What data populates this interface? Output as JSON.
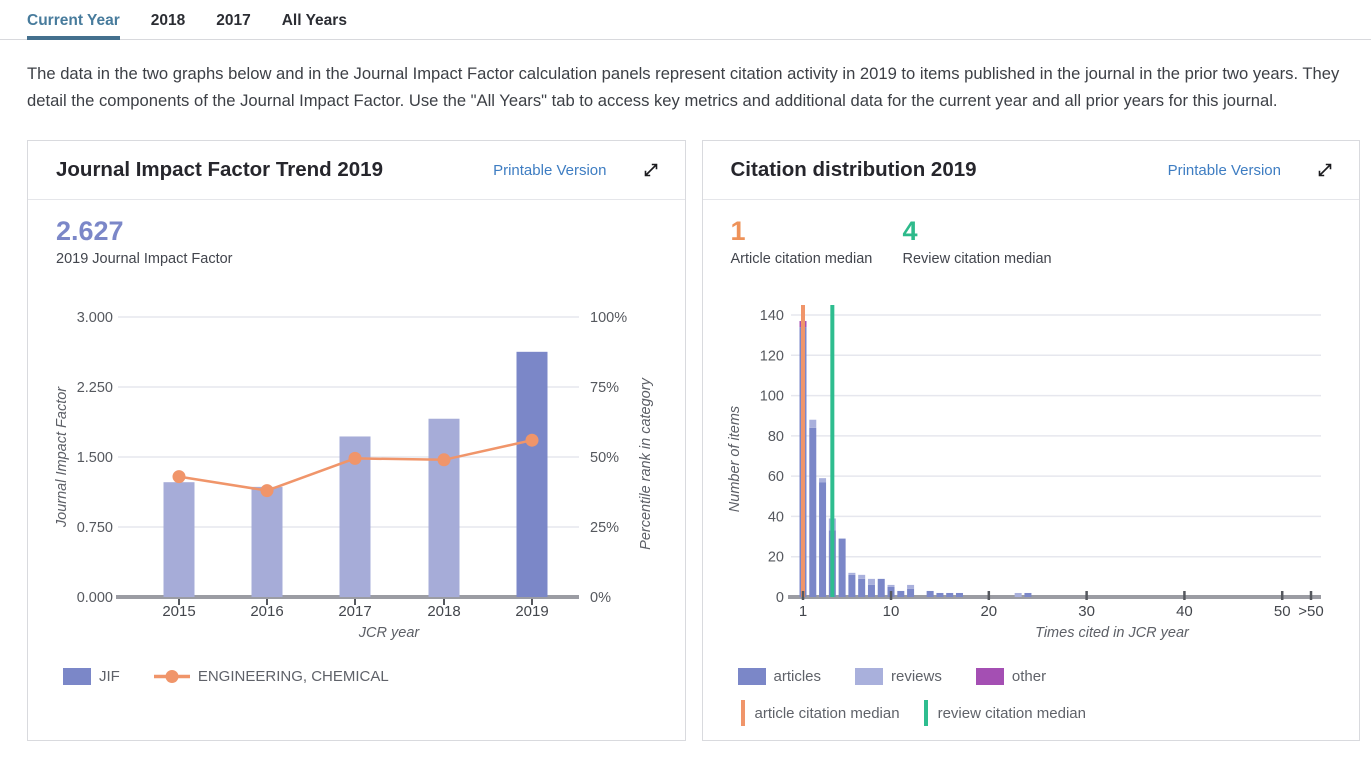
{
  "tabs": [
    {
      "label": "Current Year",
      "active": true
    },
    {
      "label": "2018",
      "active": false
    },
    {
      "label": "2017",
      "active": false
    },
    {
      "label": "All Years",
      "active": false
    }
  ],
  "intro": "The data in the two graphs below and in the Journal Impact Factor calculation panels represent citation activity in 2019 to items published in the journal in the prior two years. They detail the components of the Journal Impact Factor. Use the \"All Years\" tab to access key metrics and additional data for the current year and all prior years for this journal.",
  "jif_panel": {
    "title": "Journal Impact Factor Trend 2019",
    "printable_label": "Printable Version",
    "stat_value": "2.627",
    "stat_label": "2019 Journal Impact Factor",
    "legend": [
      {
        "label": "JIF"
      },
      {
        "label": "ENGINEERING, CHEMICAL"
      }
    ]
  },
  "citation_panel": {
    "title": "Citation distribution 2019",
    "printable_label": "Printable Version",
    "stats": [
      {
        "value": "1",
        "label": "Article citation median"
      },
      {
        "value": "4",
        "label": "Review citation median"
      }
    ],
    "legend_series": [
      {
        "label": "articles"
      },
      {
        "label": "reviews"
      },
      {
        "label": "other"
      }
    ],
    "legend_medians": [
      {
        "label": "article citation median"
      },
      {
        "label": "review citation median"
      }
    ]
  },
  "chart_data": [
    {
      "type": "bar",
      "subtype": "bar+line dual axis",
      "title": "Journal Impact Factor Trend 2019",
      "categories": [
        "2015",
        "2016",
        "2017",
        "2018",
        "2019"
      ],
      "series": [
        {
          "name": "JIF",
          "type": "bar",
          "axis": "left",
          "values": [
            1.23,
            1.18,
            1.72,
            1.91,
            2.627
          ]
        },
        {
          "name": "ENGINEERING, CHEMICAL",
          "type": "line",
          "axis": "right",
          "values": [
            43,
            38,
            49.5,
            49,
            56
          ]
        }
      ],
      "xlabel": "JCR year",
      "ylabel_left": "Journal Impact Factor",
      "ylabel_right": "Percentile rank in category",
      "ylim_left": [
        0,
        3
      ],
      "yticks_left": [
        "0.000",
        "0.750",
        "1.500",
        "2.250",
        "3.000"
      ],
      "ylim_right": [
        0,
        100
      ],
      "yticks_right": [
        "0%",
        "25%",
        "50%",
        "75%",
        "100%"
      ],
      "highlight_category": "2019",
      "grid": true,
      "legend_position": "bottom"
    },
    {
      "type": "bar",
      "subtype": "stacked-histogram",
      "title": "Citation distribution 2019",
      "xlabel": "Times cited in JCR year",
      "ylabel": "Number of items",
      "ylim": [
        0,
        140
      ],
      "yticks": [
        0,
        20,
        40,
        60,
        80,
        100,
        120,
        140
      ],
      "xticks": [
        "1",
        "10",
        "20",
        "30",
        "40",
        "50",
        ">50"
      ],
      "article_citation_median": 1,
      "review_citation_median": 4,
      "series_names": [
        "articles",
        "reviews",
        "other"
      ],
      "bins": [
        {
          "x": 1,
          "articles": 134,
          "reviews": 0,
          "other": 3
        },
        {
          "x": 2,
          "articles": 84,
          "reviews": 4,
          "other": 0
        },
        {
          "x": 3,
          "articles": 57,
          "reviews": 2,
          "other": 0
        },
        {
          "x": 4,
          "articles": 33,
          "reviews": 6,
          "other": 0
        },
        {
          "x": 5,
          "articles": 29,
          "reviews": 0,
          "other": 0
        },
        {
          "x": 6,
          "articles": 11,
          "reviews": 1,
          "other": 0
        },
        {
          "x": 7,
          "articles": 9,
          "reviews": 2,
          "other": 0
        },
        {
          "x": 8,
          "articles": 6,
          "reviews": 3,
          "other": 0
        },
        {
          "x": 9,
          "articles": 9,
          "reviews": 0,
          "other": 0
        },
        {
          "x": 10,
          "articles": 5,
          "reviews": 1,
          "other": 0
        },
        {
          "x": 11,
          "articles": 3,
          "reviews": 0,
          "other": 0
        },
        {
          "x": 12,
          "articles": 4,
          "reviews": 2,
          "other": 0
        },
        {
          "x": 14,
          "articles": 3,
          "reviews": 0,
          "other": 0
        },
        {
          "x": 15,
          "articles": 2,
          "reviews": 0,
          "other": 0
        },
        {
          "x": 16,
          "articles": 2,
          "reviews": 0,
          "other": 0
        },
        {
          "x": 17,
          "articles": 2,
          "reviews": 0,
          "other": 0
        },
        {
          "x": 23,
          "articles": 0,
          "reviews": 2,
          "other": 0
        },
        {
          "x": 24,
          "articles": 2,
          "reviews": 0,
          "other": 0
        }
      ],
      "grid": true
    }
  ],
  "colors": {
    "accent_tab": "#477b9c",
    "tab_underline": "#44708e",
    "link": "#3e7dc2",
    "jif_bar": "#a6acd8",
    "jif_bar_highlight": "#7b87c8",
    "jif_value": "#7b87c8",
    "line_series": "#f0956a",
    "articles": "#7b87c8",
    "reviews": "#a9b0dc",
    "other": "#a44fb3",
    "article_median": "#f0956a",
    "review_median": "#2ebd8f",
    "stat_orange": "#ee9259",
    "stat_green": "#2eba8b",
    "grid": "#e6e7ee",
    "axis": "#9b9ca3",
    "tick_text": "#55585e"
  }
}
